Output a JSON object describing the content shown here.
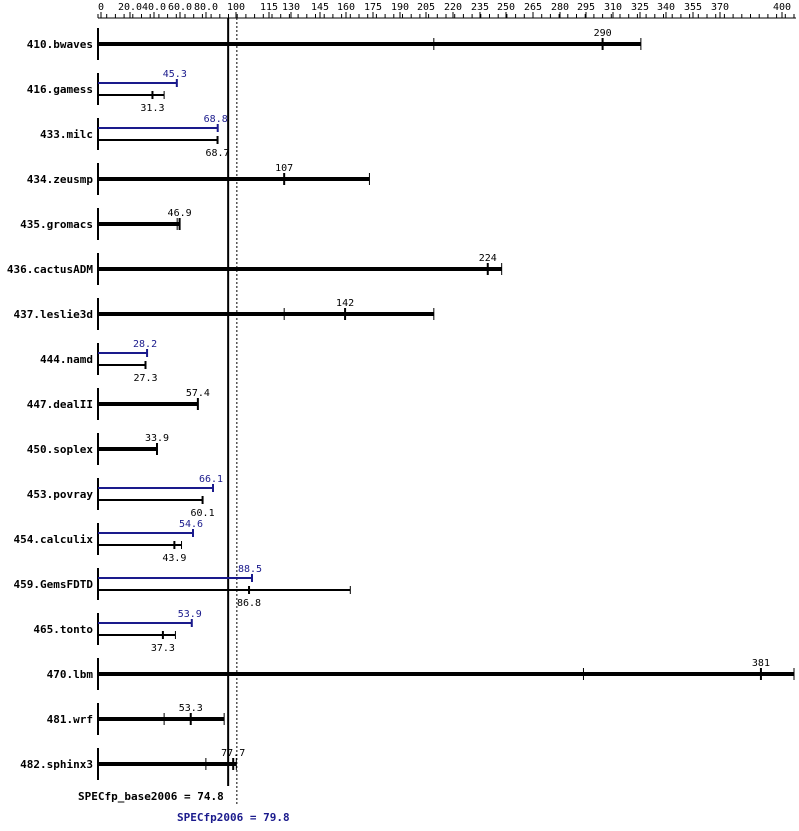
{
  "chart_data": {
    "type": "bar",
    "orientation": "horizontal",
    "x_ticks": [
      "0",
      "20.0",
      "40.0",
      "60.0",
      "80.0",
      "100",
      "115",
      "130",
      "145",
      "160",
      "175",
      "190",
      "205",
      "220",
      "235",
      "250",
      "265",
      "280",
      "295",
      "310",
      "325",
      "340",
      "355",
      "370",
      "400"
    ],
    "benchmarks": [
      {
        "name": "410.bwaves",
        "base": 290,
        "base_min": 193,
        "base_max": 312,
        "base_label": "290",
        "peak": null,
        "peak_label": ""
      },
      {
        "name": "416.gamess",
        "base": 31.3,
        "base_min": 31.3,
        "base_max": 38,
        "base_label": "31.3",
        "peak": 45.3,
        "peak_label": "45.3"
      },
      {
        "name": "433.milc",
        "base": 68.7,
        "base_min": 68.7,
        "base_max": 68.7,
        "base_label": "68.7",
        "peak": 68.8,
        "peak_label": "68.8"
      },
      {
        "name": "434.zeusmp",
        "base": 107,
        "base_min": 107,
        "base_max": 156,
        "base_label": "107",
        "peak": null,
        "peak_label": ""
      },
      {
        "name": "435.gromacs",
        "base": 46.9,
        "base_min": 45.5,
        "base_max": 46.9,
        "base_label": "46.9",
        "peak": null,
        "peak_label": ""
      },
      {
        "name": "436.cactusADM",
        "base": 224,
        "base_min": 224,
        "base_max": 232,
        "base_label": "224",
        "peak": null,
        "peak_label": ""
      },
      {
        "name": "437.leslie3d",
        "base": 142,
        "base_min": 107,
        "base_max": 193,
        "base_label": "142",
        "peak": null,
        "peak_label": ""
      },
      {
        "name": "444.namd",
        "base": 27.3,
        "base_min": 27.3,
        "base_max": 27.3,
        "base_label": "27.3",
        "peak": 28.2,
        "peak_label": "28.2"
      },
      {
        "name": "447.dealII",
        "base": 57.4,
        "base_min": 57.4,
        "base_max": 57.4,
        "base_label": "57.4",
        "peak": null,
        "peak_label": ""
      },
      {
        "name": "450.soplex",
        "base": 33.9,
        "base_min": 33.9,
        "base_max": 33.9,
        "base_label": "33.9",
        "peak": null,
        "peak_label": ""
      },
      {
        "name": "453.povray",
        "base": 60.1,
        "base_min": 60.1,
        "base_max": 60.1,
        "base_label": "60.1",
        "peak": 66.1,
        "peak_label": "66.1"
      },
      {
        "name": "454.calculix",
        "base": 43.9,
        "base_min": 42,
        "base_max": 48,
        "base_label": "43.9",
        "peak": 54.6,
        "peak_label": "54.6"
      },
      {
        "name": "459.GemsFDTD",
        "base": 86.8,
        "base_min": 86.8,
        "base_max": 145,
        "base_label": "86.8",
        "peak": 88.5,
        "peak_label": "88.5"
      },
      {
        "name": "465.tonto",
        "base": 37.3,
        "base_min": 37.3,
        "base_max": 44.5,
        "base_label": "37.3",
        "peak": 53.9,
        "peak_label": "53.9"
      },
      {
        "name": "470.lbm",
        "base": 381,
        "base_min": 279,
        "base_max": 400,
        "base_label": "381",
        "peak": null,
        "peak_label": ""
      },
      {
        "name": "481.wrf",
        "base": 53.3,
        "base_min": 38,
        "base_max": 72.5,
        "base_label": "53.3",
        "peak": null,
        "peak_label": ""
      },
      {
        "name": "482.sphinx3",
        "base": 77.7,
        "base_min": 62,
        "base_max": 79.5,
        "base_label": "77.7",
        "peak": null,
        "peak_label": ""
      }
    ],
    "base_ref": {
      "value": 74.8,
      "label": "SPECfp_base2006 = 74.8"
    },
    "peak_ref": {
      "value": 79.8,
      "label": "SPECfp2006 = 79.8"
    },
    "colors": {
      "base": "#000000",
      "peak": "#1a1a8c"
    }
  }
}
